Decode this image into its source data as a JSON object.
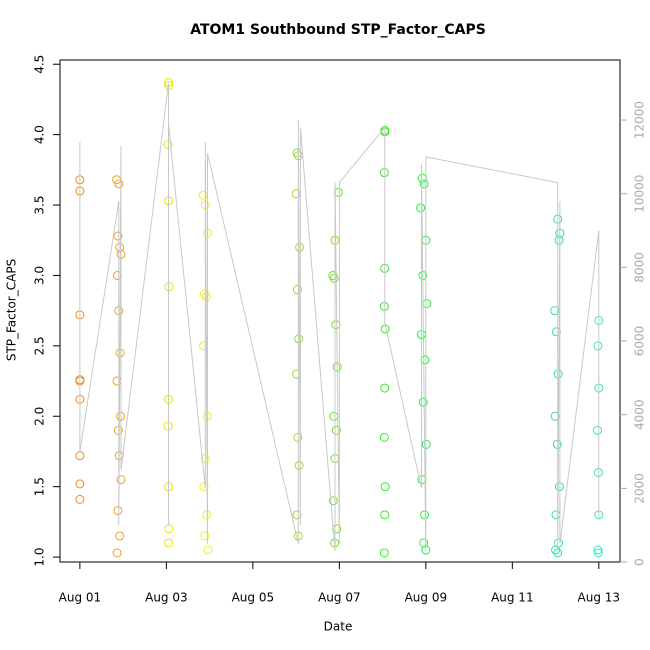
{
  "chart_data": {
    "type": "scatter",
    "title": "ATOM1 Southbound STP_Factor_CAPS",
    "x_label": "Date",
    "y_label": "STP_Factor_CAPS",
    "xlim": [
      0.54,
      13.49
    ],
    "xticks": [
      {
        "value": 1,
        "label": "Aug 01"
      },
      {
        "value": 3,
        "label": "Aug 03"
      },
      {
        "value": 5,
        "label": "Aug 05"
      },
      {
        "value": 7,
        "label": "Aug 07"
      },
      {
        "value": 9,
        "label": "Aug 09"
      },
      {
        "value": 11,
        "label": "Aug 11"
      },
      {
        "value": 13,
        "label": "Aug 13"
      }
    ],
    "ylim": [
      0.965,
      4.53
    ],
    "yticks": [
      {
        "value": 1,
        "label": "1.0"
      },
      1.5,
      {
        "value": 2,
        "label": "2.0"
      },
      2.5,
      {
        "value": 3,
        "label": "3.0"
      },
      3.5,
      {
        "value": 4,
        "label": "4.0"
      },
      4.5
    ],
    "y2lim": [
      0,
      13630
    ],
    "y2ticks": [
      0,
      2000,
      4000,
      6000,
      8000,
      10000,
      12000
    ],
    "y2color": "#aaaaaa",
    "series": [
      {
        "color": "#ee8a1c",
        "x": [
          1.0,
          1.0,
          1.0,
          1.0,
          1.0,
          1.0,
          1.0,
          1.0,
          1.0
        ],
        "values": [
          3.68,
          3.6,
          2.72,
          2.26,
          2.25,
          2.12,
          1.72,
          1.52,
          1.41
        ]
      },
      {
        "color": "#f0a020",
        "x": [
          1.85,
          1.9,
          1.88,
          1.92,
          1.95,
          1.87,
          1.9,
          1.93,
          1.86,
          1.94,
          1.89,
          1.91,
          1.95,
          1.88,
          1.92,
          1.86
        ],
        "values": [
          3.68,
          3.65,
          3.28,
          3.2,
          3.15,
          3.0,
          2.75,
          2.45,
          2.25,
          2.0,
          1.9,
          1.72,
          1.55,
          1.33,
          1.15,
          1.03
        ]
      },
      {
        "color": "#e6e600",
        "x": [
          3.05,
          3.06,
          3.04,
          3.05,
          3.06,
          3.05,
          3.04,
          3.05,
          3.06,
          3.05
        ],
        "values": [
          4.37,
          4.35,
          3.93,
          3.53,
          2.92,
          2.12,
          1.93,
          1.5,
          1.2,
          1.1
        ]
      },
      {
        "color": "#f0f020",
        "x": [
          3.85,
          3.9,
          3.95,
          3.88,
          3.92,
          3.86,
          3.94,
          3.9,
          3.87,
          3.93,
          3.89,
          3.96
        ],
        "values": [
          3.57,
          3.5,
          3.3,
          2.87,
          2.85,
          2.5,
          2.0,
          1.7,
          1.5,
          1.3,
          1.15,
          1.05
        ]
      },
      {
        "color": "#98e020",
        "x": [
          6.02,
          6.05,
          6.0,
          6.08,
          6.03,
          6.06,
          6.01,
          6.04,
          6.07,
          6.02,
          6.05
        ],
        "values": [
          3.87,
          3.85,
          3.58,
          3.2,
          2.9,
          2.55,
          2.3,
          1.85,
          1.65,
          1.3,
          1.15
        ]
      },
      {
        "color": "#70e020",
        "x": [
          6.98,
          6.9,
          6.85,
          6.88,
          6.92,
          6.95,
          6.87,
          6.93,
          6.9,
          6.86,
          6.94,
          6.89
        ],
        "values": [
          3.59,
          3.25,
          3.0,
          2.98,
          2.65,
          2.35,
          2.0,
          1.9,
          1.7,
          1.4,
          1.2,
          1.1
        ]
      },
      {
        "color": "#30f020",
        "x": [
          8.05,
          8.05,
          8.04,
          8.05,
          8.04,
          8.06,
          8.05,
          8.04,
          8.06,
          8.05,
          8.04
        ],
        "values": [
          4.03,
          4.02,
          3.73,
          3.05,
          2.78,
          2.62,
          2.2,
          1.85,
          1.5,
          1.3,
          1.03
        ]
      },
      {
        "color": "#20f040",
        "x": [
          8.92,
          8.96,
          8.88,
          9.0,
          8.93,
          9.02,
          8.9,
          8.98,
          8.94,
          9.01,
          8.91,
          8.97,
          8.95,
          9.0
        ],
        "values": [
          3.69,
          3.65,
          3.48,
          3.25,
          3.0,
          2.8,
          2.58,
          2.4,
          2.1,
          1.8,
          1.55,
          1.3,
          1.1,
          1.05
        ]
      },
      {
        "color": "#30e0a0",
        "x": [
          12.05,
          12.1,
          12.08,
          11.98,
          12.02,
          12.06,
          11.99,
          12.04,
          12.09,
          12.01,
          12.07,
          12.0,
          12.05
        ],
        "values": [
          3.4,
          3.3,
          3.25,
          2.75,
          2.6,
          2.3,
          2.0,
          1.8,
          1.5,
          1.3,
          1.1,
          1.05,
          1.03
        ]
      },
      {
        "color": "#30e8c0",
        "x": [
          13.0,
          12.98,
          13.0,
          12.97,
          12.99,
          13.0,
          12.98,
          12.99
        ],
        "values": [
          2.68,
          2.5,
          2.2,
          1.9,
          1.6,
          1.3,
          1.05,
          1.03
        ]
      },
      {
        "color": "#c8c8c8",
        "axis": "y2",
        "line": true,
        "x": [
          1.0,
          1.0,
          1.0,
          1.9,
          1.9,
          1.95,
          1.95,
          3.05,
          3.05,
          3.05,
          3.9,
          3.9,
          3.95,
          3.95,
          6.05,
          6.05,
          6.1,
          6.1,
          6.9,
          6.9,
          7.0,
          7.0,
          8.05,
          8.05,
          8.9,
          8.9,
          9.0,
          9.0,
          12.05,
          12.05,
          12.1,
          12.1,
          13.0,
          13.0
        ],
        "values": [
          6200,
          11400,
          3000,
          9800,
          1000,
          11300,
          2500,
          13000,
          1000,
          11900,
          2000,
          11400,
          500,
          11100,
          500,
          12000,
          1000,
          11800,
          300,
          10300,
          500,
          10300,
          11800,
          6500,
          2000,
          10800,
          300,
          11000,
          10300,
          300,
          9800,
          500,
          9000,
          1200
        ]
      }
    ]
  }
}
